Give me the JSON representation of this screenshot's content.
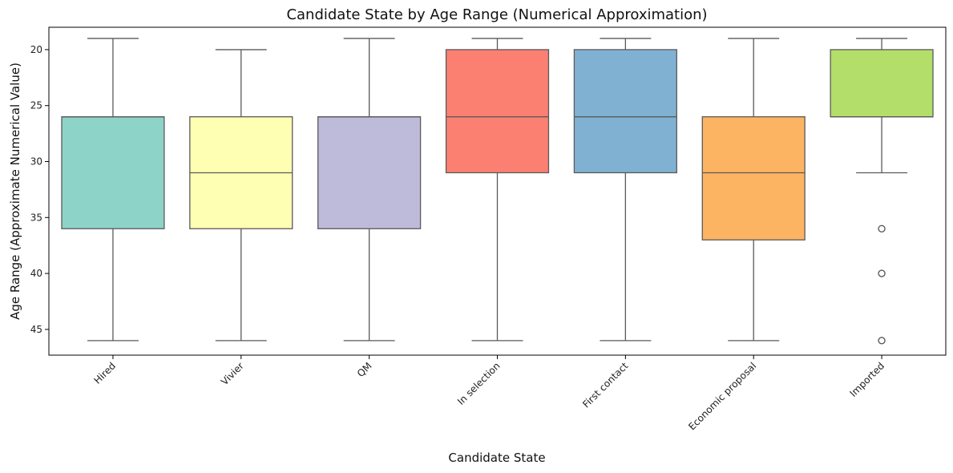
{
  "chart_data": {
    "type": "box",
    "title": "Candidate State by Age Range (Numerical Approximation)",
    "xlabel": "Candidate State",
    "ylabel": "Age Range (Approximate Numerical Value)",
    "y_inverted": true,
    "ylim": [
      18.0,
      47.3
    ],
    "yticks": [
      20,
      25,
      30,
      35,
      40,
      45
    ],
    "grid": false,
    "legend": "none",
    "xtick_rotation": 45,
    "categories": [
      "Hired",
      "Vivier",
      "QM",
      "In selection",
      "First contact",
      "Economic proposal",
      "Imported"
    ],
    "colors": [
      "#8dd3c7",
      "#ffffb3",
      "#bebada",
      "#fb8072",
      "#80b1d3",
      "#fdb462",
      "#b3de69"
    ],
    "boxes": [
      {
        "category": "Hired",
        "whisker_low": 19,
        "q1": 26,
        "median": 26,
        "q3": 36,
        "whisker_high": 46,
        "outliers": []
      },
      {
        "category": "Vivier",
        "whisker_low": 20,
        "q1": 26,
        "median": 31,
        "q3": 36,
        "whisker_high": 46,
        "outliers": []
      },
      {
        "category": "QM",
        "whisker_low": 19,
        "q1": 26,
        "median": 26,
        "q3": 36,
        "whisker_high": 46,
        "outliers": []
      },
      {
        "category": "In selection",
        "whisker_low": 19,
        "q1": 20,
        "median": 26,
        "q3": 31,
        "whisker_high": 46,
        "outliers": []
      },
      {
        "category": "First contact",
        "whisker_low": 19,
        "q1": 20,
        "median": 26,
        "q3": 31,
        "whisker_high": 46,
        "outliers": []
      },
      {
        "category": "Economic proposal",
        "whisker_low": 19,
        "q1": 26,
        "median": 31,
        "q3": 37,
        "whisker_high": 46,
        "outliers": []
      },
      {
        "category": "Imported",
        "whisker_low": 19,
        "q1": 20,
        "median": 26,
        "q3": 26,
        "whisker_high": 31,
        "outliers": [
          36,
          40,
          46
        ]
      }
    ]
  }
}
